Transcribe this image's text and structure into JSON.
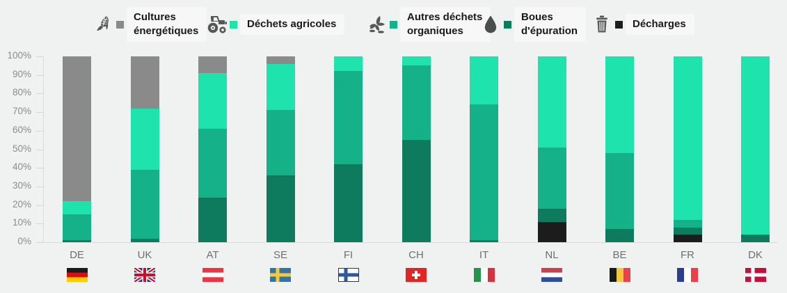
{
  "page": {
    "background": "#f0f1f1"
  },
  "legend": {
    "items": [
      {
        "label": "Cultures énergétiques",
        "lines": [
          "Cultures",
          "énergétiques"
        ],
        "color": "#8a8a8a",
        "icon": "corn-icon"
      },
      {
        "label": "Déchets agricoles",
        "lines": [
          "Déchets agricoles",
          ""
        ],
        "color": "#1ee3ac",
        "icon": "tractor-icon"
      },
      {
        "label": "Autres déchets organiques",
        "lines": [
          "Autres déchets",
          "organiques"
        ],
        "color": "#15b28a",
        "icon": "organic-waste-icon"
      },
      {
        "label": "Boues d'épuration",
        "lines": [
          "Boues",
          "d'épuration"
        ],
        "color": "#0e7a5e",
        "icon": "droplet-icon"
      },
      {
        "label": "Décharges",
        "lines": [
          "Décharges",
          ""
        ],
        "color": "#1c1c1c",
        "icon": "trash-icon"
      }
    ]
  },
  "chart_data": {
    "type": "bar",
    "stacked": true,
    "percent": true,
    "unit": "%",
    "categories": [
      "DE",
      "UK",
      "AT",
      "SE",
      "FI",
      "CH",
      "IT",
      "NL",
      "BE",
      "FR",
      "DK"
    ],
    "series": [
      {
        "name": "Cultures énergétiques",
        "color": "#8a8a8a",
        "values": [
          78,
          28,
          9,
          4,
          0,
          0,
          0,
          0,
          0,
          0,
          0
        ]
      },
      {
        "name": "Déchets agricoles",
        "color": "#1ee3ac",
        "values": [
          7,
          33,
          30,
          25,
          8,
          5,
          26,
          49,
          52,
          88,
          96
        ]
      },
      {
        "name": "Autres déchets organiques",
        "color": "#15b28a",
        "values": [
          14,
          37,
          37,
          35,
          50,
          40,
          73,
          33,
          41,
          4,
          0
        ]
      },
      {
        "name": "Boues d'épuration",
        "color": "#0e7a5e",
        "values": [
          1,
          2,
          24,
          36,
          42,
          55,
          1,
          7,
          7,
          4,
          4
        ]
      },
      {
        "name": "Décharges",
        "color": "#1c1c1c",
        "values": [
          0,
          0,
          0,
          0,
          0,
          0,
          0,
          11,
          0,
          4,
          0
        ]
      }
    ],
    "title": "",
    "xlabel": "",
    "ylabel": "",
    "ylim": [
      0,
      100
    ],
    "yticks": [
      "0%",
      "10%",
      "20%",
      "30%",
      "40%",
      "50%",
      "60%",
      "70%",
      "80%",
      "90%",
      "100%"
    ],
    "legend_position": "top",
    "grid": false
  },
  "flags": {
    "DE": {
      "type": "stripes-h",
      "colors": [
        "#1a1a1a",
        "#dd0b15",
        "#ffcc00"
      ]
    },
    "UK": {
      "type": "union-jack",
      "field": "#1f3c7d",
      "cross": "#c8102e",
      "white": "#ffffff"
    },
    "AT": {
      "type": "stripes-h",
      "colors": [
        "#ee3442",
        "#ffffff",
        "#ee3442"
      ]
    },
    "SE": {
      "type": "nordic",
      "field": "#3474a5",
      "cross": "#f7c83c",
      "border": ""
    },
    "FI": {
      "type": "nordic",
      "field": "#ffffff",
      "cross": "#2d5a9e",
      "border": "#33383d"
    },
    "CH": {
      "type": "swiss",
      "field": "#e02522",
      "cross": "#ffffff"
    },
    "IT": {
      "type": "stripes-v",
      "colors": [
        "#25934b",
        "#ffffff",
        "#d5343f"
      ]
    },
    "NL": {
      "type": "stripes-h",
      "colors": [
        "#c8414b",
        "#ffffff",
        "#2e4f96"
      ]
    },
    "BE": {
      "type": "stripes-v",
      "colors": [
        "#1a1a1a",
        "#f2c93c",
        "#e8434b"
      ]
    },
    "FR": {
      "type": "stripes-v",
      "colors": [
        "#2c3f8f",
        "#ffffff",
        "#e8414b"
      ]
    },
    "DK": {
      "type": "nordic",
      "field": "#c2113a",
      "cross": "#ffffff",
      "border": ""
    }
  }
}
